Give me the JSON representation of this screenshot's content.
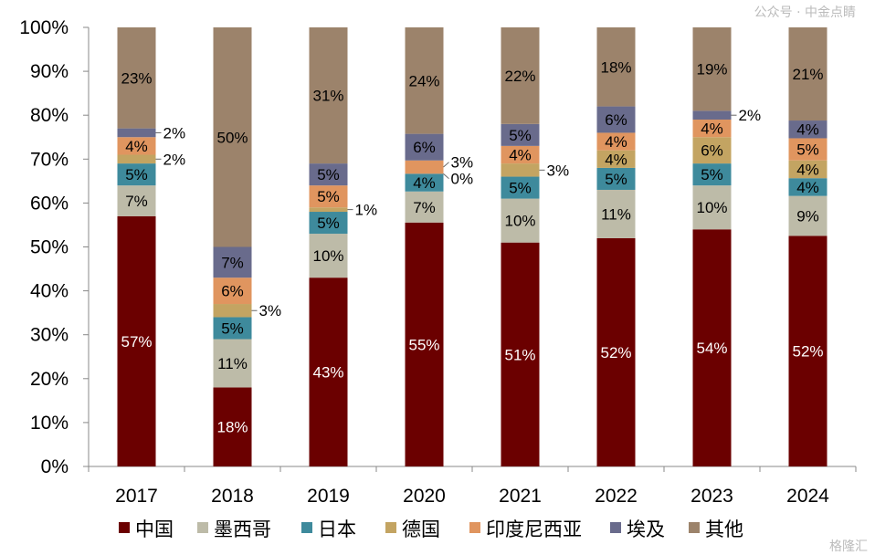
{
  "chart_data": {
    "type": "bar",
    "stacked": true,
    "percent_stacked": true,
    "categories": [
      "2017",
      "2018",
      "2019",
      "2020",
      "2021",
      "2022",
      "2023",
      "2024"
    ],
    "ylim": [
      0,
      100
    ],
    "yticks": [
      "0%",
      "10%",
      "20%",
      "30%",
      "40%",
      "50%",
      "60%",
      "70%",
      "80%",
      "90%",
      "100%"
    ],
    "legend_position": "bottom",
    "grid": false,
    "series": [
      {
        "name": "中国",
        "color": "#6b0000",
        "label_color": "#ffffff",
        "values": [
          57,
          18,
          43,
          55,
          51,
          52,
          54,
          52
        ]
      },
      {
        "name": "墨西哥",
        "color": "#bdbba8",
        "label_color": "#000000",
        "values": [
          7,
          11,
          10,
          7,
          10,
          11,
          10,
          9
        ]
      },
      {
        "name": "日本",
        "color": "#3e8a9c",
        "label_color": "#000000",
        "values": [
          5,
          5,
          5,
          4,
          5,
          5,
          5,
          4
        ]
      },
      {
        "name": "德国",
        "color": "#c3a462",
        "label_color": "#000000",
        "values": [
          2,
          3,
          1,
          0,
          3,
          4,
          6,
          4
        ]
      },
      {
        "name": "印度尼西亚",
        "color": "#e0955f",
        "label_color": "#000000",
        "values": [
          4,
          6,
          5,
          3,
          4,
          4,
          4,
          5
        ]
      },
      {
        "name": "埃及",
        "color": "#696b8c",
        "label_color": "#000000",
        "values": [
          2,
          7,
          5,
          6,
          5,
          6,
          2,
          4
        ]
      },
      {
        "name": "其他",
        "color": "#9c836b",
        "label_color": "#000000",
        "values": [
          23,
          50,
          31,
          24,
          22,
          18,
          19,
          21
        ]
      }
    ]
  },
  "watermark": {
    "line1": "公众号 · 中金点睛",
    "line2": "格隆汇"
  }
}
